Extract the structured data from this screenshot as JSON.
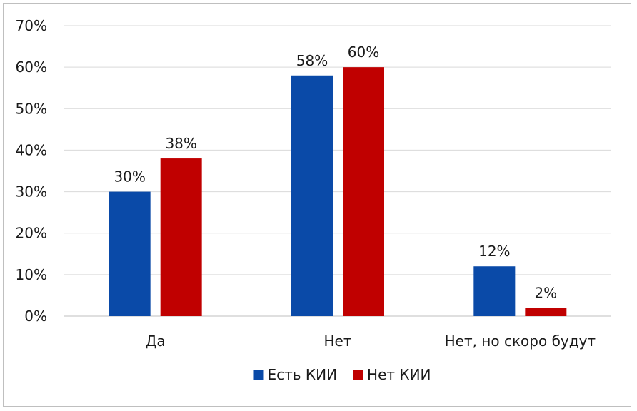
{
  "chart_data": {
    "type": "bar",
    "categories": [
      "Да",
      "Нет",
      "Нет, но скоро будут"
    ],
    "series": [
      {
        "name": "Есть КИИ",
        "color": "#0a4aa8",
        "values": [
          30,
          58,
          12
        ],
        "value_labels": [
          "30%",
          "58%",
          "12%"
        ]
      },
      {
        "name": "Нет КИИ",
        "color": "#c00000",
        "values": [
          38,
          60,
          2
        ],
        "value_labels": [
          "38%",
          "60%",
          "2%"
        ]
      }
    ],
    "y_ticks": [
      "0%",
      "10%",
      "20%",
      "30%",
      "40%",
      "50%",
      "60%",
      "70%"
    ],
    "y_tick_values": [
      0,
      10,
      20,
      30,
      40,
      50,
      60,
      70
    ],
    "ylim": [
      0,
      70
    ],
    "grid": true,
    "legend_position": "bottom"
  }
}
